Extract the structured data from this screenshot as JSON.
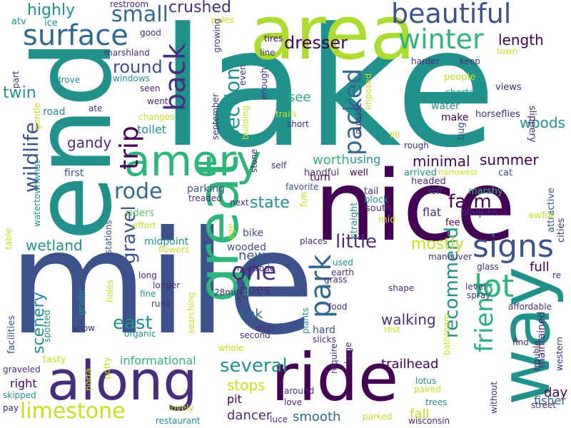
{
  "cloud": {
    "colors": {
      "indigo": "#3b528b",
      "teal": "#21918c",
      "green": "#2fb47c",
      "lime": "#addc30",
      "yellow": "#c8e020",
      "purple": "#440154",
      "violet": "#472d7b",
      "slate": "#31688e",
      "mint": "#5ec962",
      "cyan": "#28ae80"
    },
    "words": [
      "mile",
      "lake",
      "nice",
      "end",
      "area",
      "along",
      "ride",
      "way",
      "amery",
      "great",
      "beautiful",
      "surface",
      "winter",
      "back",
      "wildlife",
      "signs",
      "trip",
      "lot",
      "small",
      "rode",
      "park",
      "one",
      "packed",
      "friend",
      "recommend",
      "section",
      "gravel",
      "limestone",
      "east",
      "several",
      "little",
      "farm",
      "highly",
      "dresser",
      "round",
      "crushed",
      "twin",
      "woods",
      "summer",
      "wetland",
      "mostly",
      "scenery",
      "walking",
      "state",
      "gandy",
      "toilet",
      "worth",
      "using",
      "minimal",
      "length",
      "see",
      "water",
      "make",
      "day",
      "full",
      "new",
      "link",
      "goes",
      "stops",
      "smooth",
      "fall",
      "trailhead",
      "dancer",
      "right",
      "pit",
      "informational",
      "first",
      "riders",
      "parking",
      "turn",
      "midpoint",
      "bike",
      "wooded",
      "hard",
      "maintained",
      "fisher",
      "restroom",
      "atv",
      "ice",
      "marshland",
      "good",
      "poles",
      "tires",
      "growing",
      "even",
      "line",
      "town",
      "harder",
      "keep",
      "slippery",
      "views",
      "people",
      "shorter",
      "horseflies",
      "bug",
      "cat",
      "attractive",
      "cities",
      "awful",
      "marshy",
      "fee",
      "plaques",
      "flat",
      "left",
      "headed",
      "narrowest",
      "arrived",
      "handful",
      "well",
      "tail",
      "south",
      "block",
      "mid",
      "fun",
      "straight",
      "favorite",
      "self",
      "treaded",
      "next",
      "stations",
      "effort",
      "flowers",
      "places",
      "age",
      "mustrode",
      "glass",
      "maneuver",
      "level",
      "spray",
      "affordable",
      "re",
      "earth",
      "grass",
      "used",
      "shape",
      "food",
      "rest",
      "deer",
      "second",
      "28mm",
      "runs",
      "longer",
      "long",
      "fine",
      "holes",
      "grade",
      "snow",
      "spotted",
      "facilities",
      "tasty",
      "organic",
      "whole",
      "searching",
      "plants",
      "slicks",
      "large",
      "require",
      "bathroom",
      "find",
      "trouble",
      "western",
      "without",
      "street",
      "trees",
      "paired",
      "lotus",
      "love",
      "around",
      "parked",
      "wisconsin",
      "luce",
      "restaurant",
      "lovely",
      "potty",
      "porta",
      "skipped",
      "pay",
      "graveled",
      "table",
      "watertownwhat",
      "gentle",
      "part",
      "drove",
      "windows",
      "seen",
      "went",
      "changes",
      "ate",
      "road",
      "september",
      "building",
      "stone",
      "enough",
      "outside",
      "imposed",
      "trails",
      "short",
      "fill",
      "rough",
      "s"
    ]
  }
}
